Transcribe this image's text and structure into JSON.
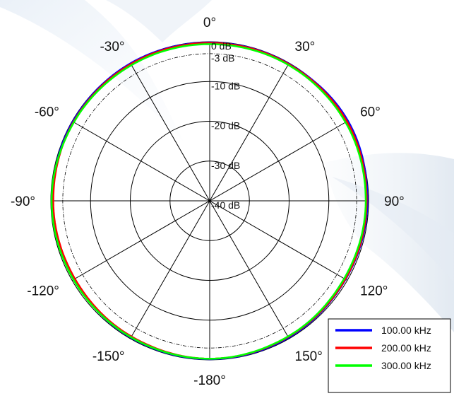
{
  "chart_data": {
    "type": "polar",
    "title": "",
    "radial_unit": "dB",
    "radial_range": [
      -40,
      0
    ],
    "angle_direction": "clockwise",
    "angle_zero": "top",
    "angle_ticks": [
      {
        "deg": 0,
        "label": "0°"
      },
      {
        "deg": 30,
        "label": "30°"
      },
      {
        "deg": 60,
        "label": "60°"
      },
      {
        "deg": 90,
        "label": "90°"
      },
      {
        "deg": 120,
        "label": "120°"
      },
      {
        "deg": 150,
        "label": "150°"
      },
      {
        "deg": 180,
        "label": "-180°"
      },
      {
        "deg": -150,
        "label": "-150°"
      },
      {
        "deg": -120,
        "label": "-120°"
      },
      {
        "deg": -90,
        "label": "-90°"
      },
      {
        "deg": -60,
        "label": "-60°"
      },
      {
        "deg": -30,
        "label": "-30°"
      }
    ],
    "ring_ticks": [
      {
        "db": 0,
        "label": "0 dB"
      },
      {
        "db": -3,
        "label": "-3 dB"
      },
      {
        "db": -10,
        "label": "-10 dB"
      },
      {
        "db": -20,
        "label": "-20 dB"
      },
      {
        "db": -30,
        "label": "-30 dB"
      },
      {
        "db": -40,
        "label": "-40 dB"
      }
    ],
    "angles": [
      -180,
      -150,
      -120,
      -90,
      -60,
      -30,
      0,
      30,
      60,
      90,
      120,
      150,
      180
    ],
    "series": [
      {
        "name": "100.00 kHz",
        "color": "#0000ff",
        "values": [
          -0.2,
          -0.3,
          -0.5,
          -0.4,
          -0.2,
          -0.1,
          -0.2,
          -0.2,
          0.2,
          -0.3,
          -0.5,
          -0.3,
          -0.2
        ]
      },
      {
        "name": "200.00 kHz",
        "color": "#ff0000",
        "values": [
          -0.3,
          -0.6,
          -0.8,
          -0.6,
          -0.4,
          -0.3,
          -0.3,
          -0.3,
          -0.1,
          -0.5,
          -0.6,
          -0.5,
          -0.3
        ]
      },
      {
        "name": "300.00 kHz",
        "color": "#00ff00",
        "values": [
          -0.3,
          -0.4,
          -0.4,
          -0.2,
          -0.5,
          -0.6,
          -0.6,
          -0.5,
          -0.5,
          -0.7,
          -0.9,
          -0.6,
          -0.3
        ]
      }
    ],
    "legend": "bottom-right",
    "grid": true
  }
}
